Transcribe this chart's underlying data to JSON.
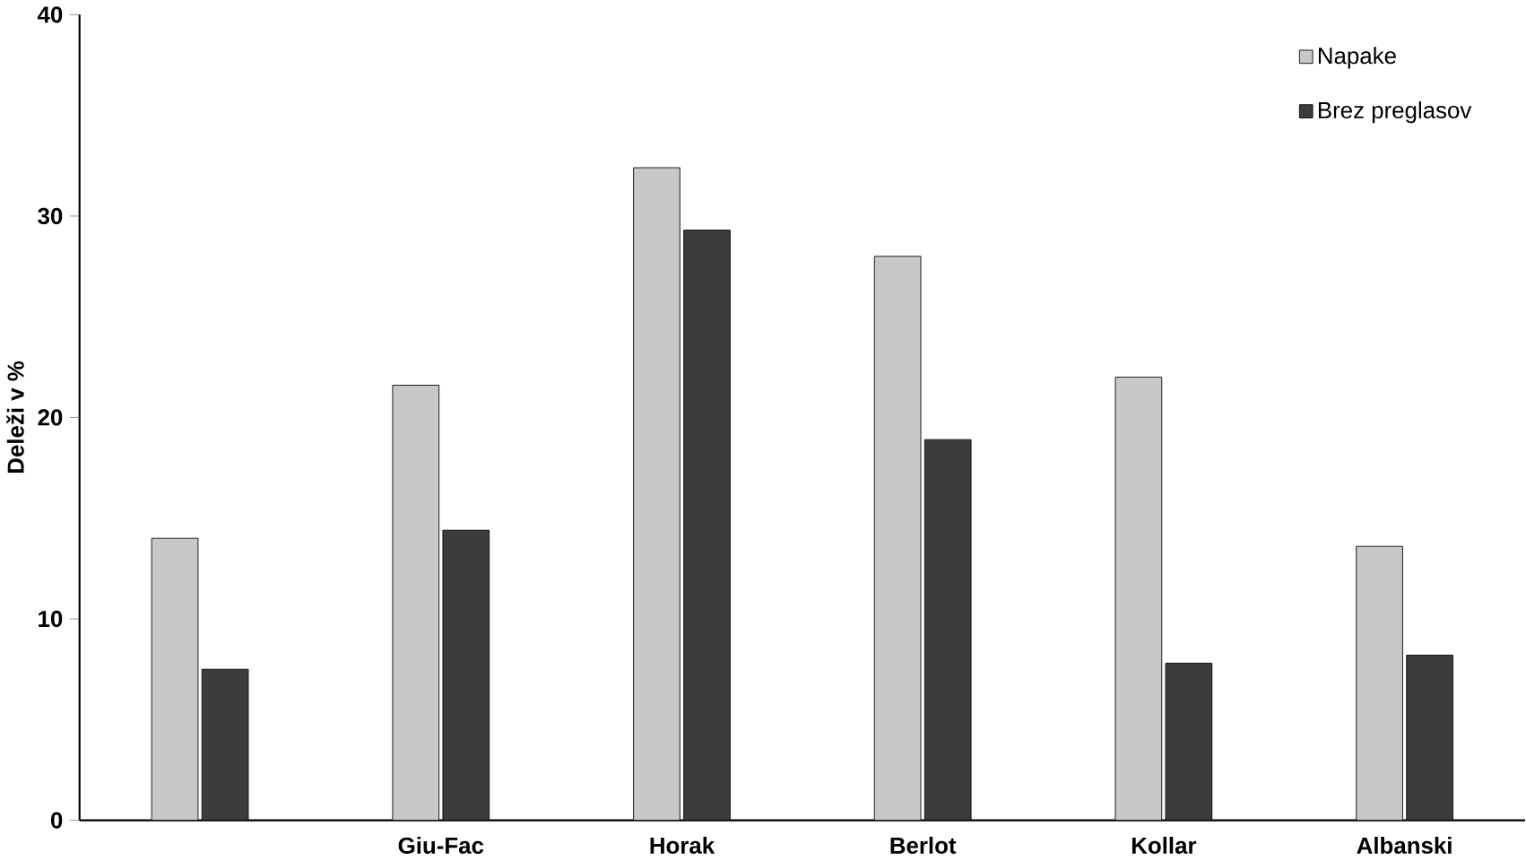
{
  "chart_data": {
    "type": "bar",
    "ylabel": "Deleži v %",
    "categories": [
      null,
      "Giu-Fac",
      "Horak",
      "Berlot",
      "Kollar",
      "Albanski"
    ],
    "series": [
      {
        "name": "Napake",
        "color": "#c8c8c8",
        "values": [
          14.0,
          21.6,
          32.4,
          28.0,
          22.0,
          13.6
        ]
      },
      {
        "name": "Brez preglasov",
        "color": "#3c3c3c",
        "values": [
          7.5,
          14.4,
          29.3,
          18.9,
          7.8,
          8.2
        ]
      }
    ],
    "ylim": [
      0,
      40
    ],
    "yticks": [
      0,
      10,
      20,
      30,
      40
    ],
    "grid": false,
    "legend": "top right"
  }
}
